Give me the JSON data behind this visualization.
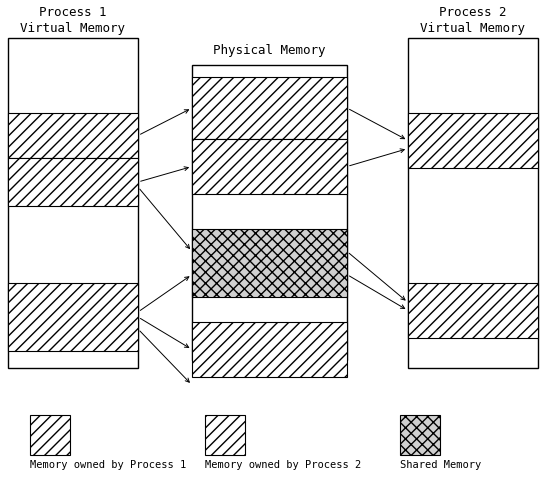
{
  "title_p1": "Process 1\nVirtual Memory",
  "title_p2": "Process 2\nVirtual Memory",
  "title_phys": "Physical Memory",
  "legend_labels": [
    "Memory owned by Process 1",
    "Memory owned by Process 2",
    "Shared Memory"
  ],
  "hatch_p1": "///",
  "hatch_p2": "///",
  "hatch_shared": "xxx",
  "color_p1": "white",
  "color_p2": "white",
  "color_shared": "#d0d0d0",
  "bg_color": "white",
  "font_family": "monospace",
  "font_size": 9,
  "legend_font_size": 7.5
}
